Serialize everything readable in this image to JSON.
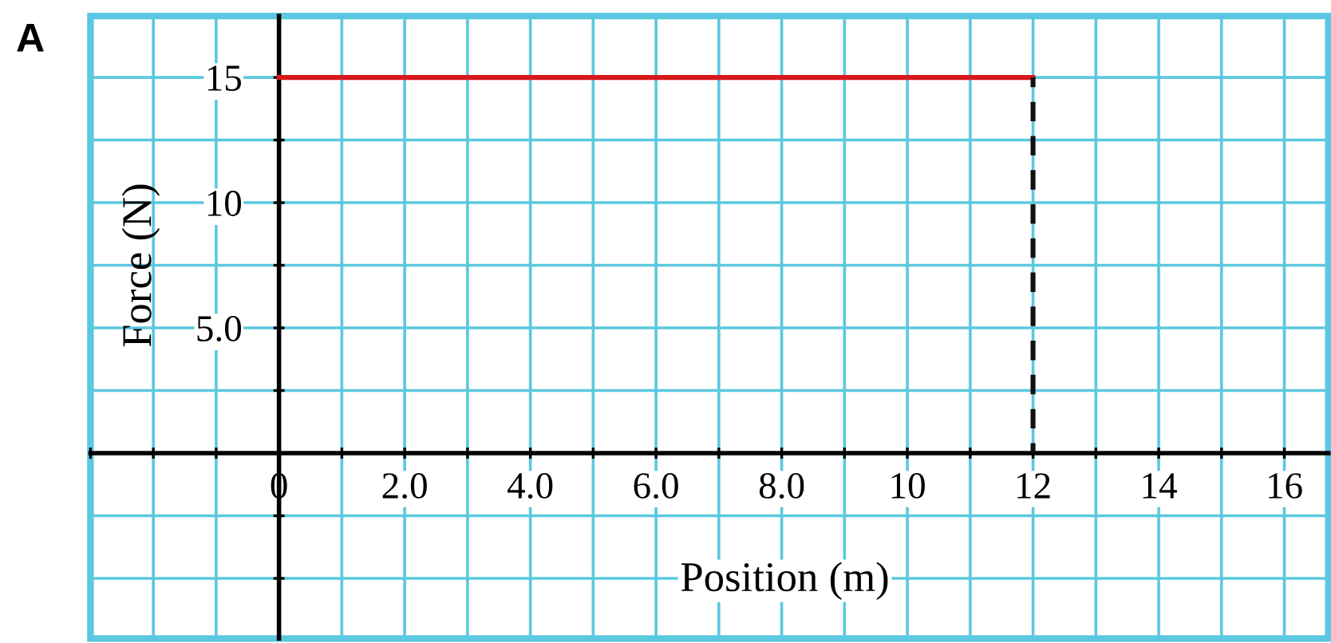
{
  "chart_data": {
    "type": "line",
    "annotations": [
      "A"
    ],
    "x": [
      0,
      12
    ],
    "xlabel": "Position (m)",
    "ylabel": "Force (N)",
    "series": [
      {
        "values": [
          15,
          15
        ],
        "color": "#d7191c",
        "line_style": "solid"
      },
      {
        "x": [
          12,
          12
        ],
        "values": [
          0,
          15
        ],
        "color": "#111111",
        "line_style": "dashed"
      }
    ],
    "xlim": [
      -3,
      16.7
    ],
    "ylim": [
      -7.4,
      17.45
    ],
    "xticks": [
      {
        "value": -3,
        "label": null
      },
      {
        "value": -2,
        "label": null
      },
      {
        "value": -1,
        "label": null
      },
      0,
      {
        "value": 1,
        "label": null
      },
      {
        "value": 2,
        "label": "2.0"
      },
      {
        "value": 3,
        "label": null
      },
      {
        "value": 4,
        "label": "4.0"
      },
      {
        "value": 5,
        "label": null
      },
      {
        "value": 6,
        "label": "6.0"
      },
      {
        "value": 7,
        "label": null
      },
      {
        "value": 8,
        "label": "8.0"
      },
      {
        "value": 9,
        "label": null
      },
      10,
      {
        "value": 11,
        "label": null
      },
      12,
      {
        "value": 13,
        "label": null
      },
      14,
      {
        "value": 15,
        "label": null
      },
      16
    ],
    "yticks": [
      {
        "value": -5,
        "label": null
      },
      {
        "value": -2.5,
        "label": null
      },
      {
        "value": 0,
        "label": null
      },
      {
        "value": 2.5,
        "label": null
      },
      {
        "value": 5,
        "label": "5.0"
      },
      {
        "value": 7.5,
        "label": null
      },
      10,
      {
        "value": 12.5,
        "label": null
      },
      15
    ],
    "grid": true
  }
}
